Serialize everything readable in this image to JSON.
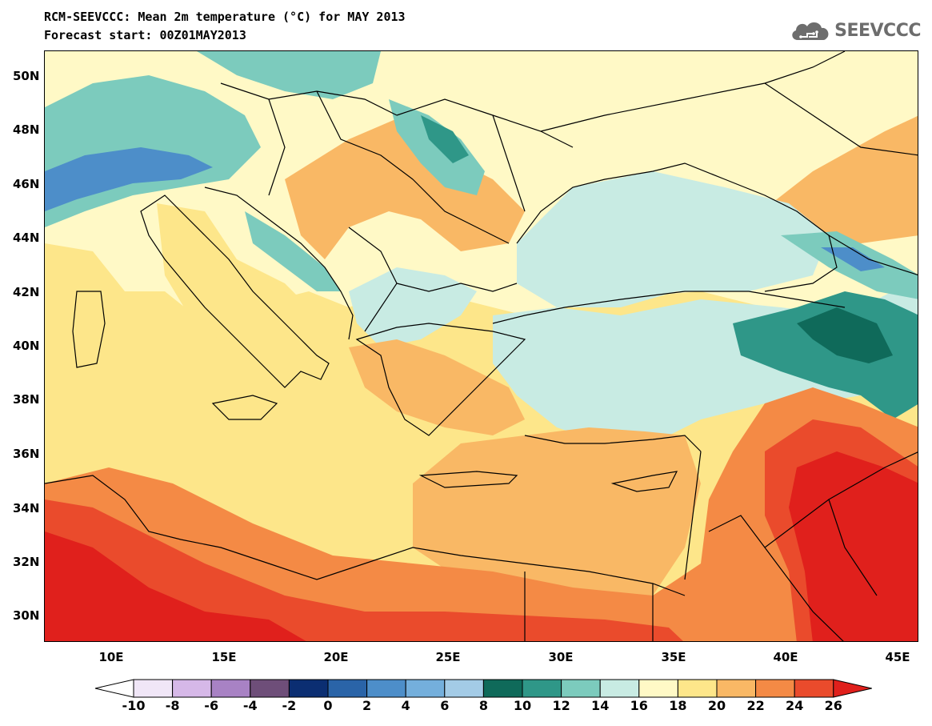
{
  "title": "RCM-SEEVCCC: Mean 2m temperature (°C) for MAY 2013",
  "subtitle": "Forecast start: 00Z01MAY2013",
  "logo": {
    "text": "SEEVCCC",
    "icon": "cloud-icon"
  },
  "lat_labels": [
    "50N",
    "48N",
    "46N",
    "44N",
    "42N",
    "40N",
    "38N",
    "36N",
    "34N",
    "32N",
    "30N"
  ],
  "lon_labels": [
    "10E",
    "15E",
    "20E",
    "25E",
    "30E",
    "35E",
    "40E",
    "45E"
  ],
  "colorbar": {
    "labels": [
      "-10",
      "-8",
      "-6",
      "-4",
      "-2",
      "0",
      "2",
      "4",
      "6",
      "8",
      "10",
      "12",
      "14",
      "16",
      "18",
      "20",
      "22",
      "24",
      "26"
    ],
    "colors": [
      "#f0e6f7",
      "#d6b8e8",
      "#a882c4",
      "#6e4e79",
      "#0b2e72",
      "#2a64a8",
      "#4d8ec9",
      "#74afdc",
      "#a3cbe6",
      "#0f6a5a",
      "#2f9788",
      "#7ccbbd",
      "#c8ebe3",
      "#fff9c6",
      "#fde68a",
      "#f9b865",
      "#f48a45",
      "#ea4b2c"
    ],
    "under_color": "#ffffff",
    "over_color": "#e0201c"
  },
  "legend_colors": {
    "cold_teal": "#2f9788",
    "light_blue": "#c8ebe3",
    "pale_yellow": "#fff9c6",
    "yellow": "#fde68a",
    "light_orange": "#f9b865",
    "orange": "#f48a45",
    "red": "#ea4b2c",
    "dark_red": "#e0201c",
    "blue": "#4d8ec9",
    "border": "#000000"
  }
}
